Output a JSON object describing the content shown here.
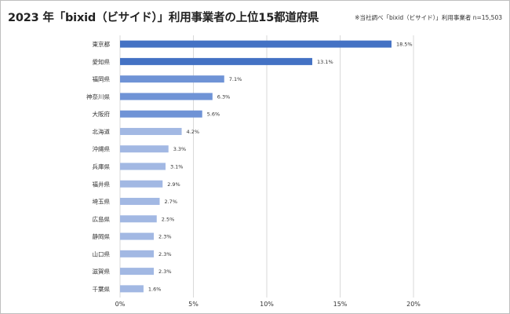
{
  "header": {
    "title": "2023 年「bixid（ビサイド）」利用事業者の上位15都道府県",
    "note": "※当社調べ「bixid（ビサイド）」利用事業者 n=15,503"
  },
  "chart_data": {
    "type": "bar",
    "orientation": "horizontal",
    "title": "2023 年「bixid（ビサイド）」利用事業者の上位15都道府県",
    "categories": [
      "東京都",
      "愛知県",
      "福岡県",
      "神奈川県",
      "大阪府",
      "北海道",
      "沖縄県",
      "兵庫県",
      "福井県",
      "埼玉県",
      "広島県",
      "静岡県",
      "山口県",
      "滋賀県",
      "千葉県"
    ],
    "values": [
      18.5,
      13.1,
      7.1,
      6.3,
      5.6,
      4.2,
      3.3,
      3.1,
      2.9,
      2.7,
      2.5,
      2.3,
      2.3,
      2.3,
      1.6
    ],
    "data_labels": [
      "18.5%",
      "13.1%",
      "7.1%",
      "6.3%",
      "5.6%",
      "4.2%",
      "3.3%",
      "3.1%",
      "2.9%",
      "2.7%",
      "2.5%",
      "2.3%",
      "2.3%",
      "2.3%",
      "1.6%"
    ],
    "xlim": [
      0,
      20
    ],
    "xticks": [
      0,
      5,
      10,
      15,
      20
    ],
    "xtick_labels": [
      "0%",
      "5%",
      "10%",
      "15%",
      "20%"
    ],
    "xlabel": "",
    "ylabel": "",
    "grid": true,
    "legend": "none",
    "colors": {
      "top_tier": "#4472c4",
      "mid_tier": "#6f93d6",
      "low_tier": "#a2b8e3",
      "gridline": "#d9d9d9"
    },
    "color_tiers": [
      "top_tier",
      "top_tier",
      "mid_tier",
      "mid_tier",
      "mid_tier",
      "low_tier",
      "low_tier",
      "low_tier",
      "low_tier",
      "low_tier",
      "low_tier",
      "low_tier",
      "low_tier",
      "low_tier",
      "low_tier"
    ]
  }
}
